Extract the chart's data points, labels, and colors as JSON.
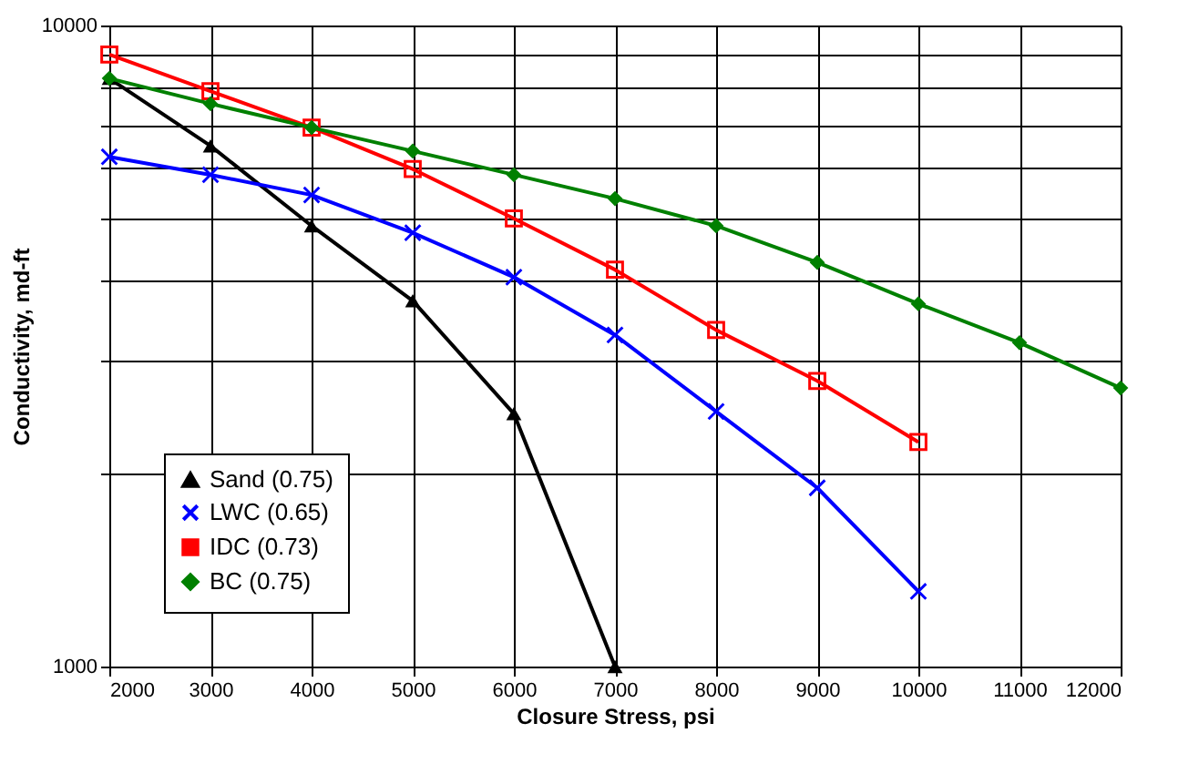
{
  "chart_data": {
    "type": "line",
    "xlabel": "Closure Stress, psi",
    "ylabel": "Conductivity, md-ft",
    "x": [
      2000,
      3000,
      4000,
      5000,
      6000,
      7000,
      8000,
      9000,
      10000,
      11000,
      12000
    ],
    "xlim": [
      2000,
      12000
    ],
    "xticks": [
      2000,
      3000,
      4000,
      5000,
      6000,
      7000,
      8000,
      9000,
      10000,
      11000,
      12000
    ],
    "ylim": [
      1000,
      10000
    ],
    "log": true,
    "yticks": [
      1000,
      {
        "value": 2000,
        "label": null
      },
      {
        "value": 3000,
        "label": null
      },
      {
        "value": 4000,
        "label": null
      },
      {
        "value": 5000,
        "label": null
      },
      {
        "value": 6000,
        "label": null
      },
      {
        "value": 7000,
        "label": null
      },
      {
        "value": 8000,
        "label": null
      },
      {
        "value": 9000,
        "label": null
      },
      10000
    ],
    "grid": true,
    "legend": "bottom left",
    "line_style": "solid",
    "series": [
      {
        "name": "Sand (0.75)",
        "color": "#000000",
        "marker": "triangle",
        "values": [
          8270,
          6490,
          4870,
          3720,
          2480,
          1000,
          null,
          null,
          null,
          null,
          null
        ]
      },
      {
        "name": "LWC (0.65)",
        "color": "#0000ff",
        "marker": "cross",
        "values": [
          6240,
          5850,
          5440,
          4750,
          4050,
          3290,
          2500,
          1900,
          1310,
          null,
          null
        ]
      },
      {
        "name": "IDC (0.73)",
        "color": "#ff0000",
        "marker": "square",
        "values": [
          9010,
          7900,
          6930,
          5970,
          5000,
          4160,
          3350,
          2790,
          2240,
          null,
          null
        ]
      },
      {
        "name": "BC (0.75)",
        "color": "#008000",
        "marker": "diamond",
        "values": [
          8270,
          7550,
          6930,
          6370,
          5850,
          5370,
          4870,
          4270,
          3680,
          3200,
          2720
        ]
      }
    ]
  }
}
